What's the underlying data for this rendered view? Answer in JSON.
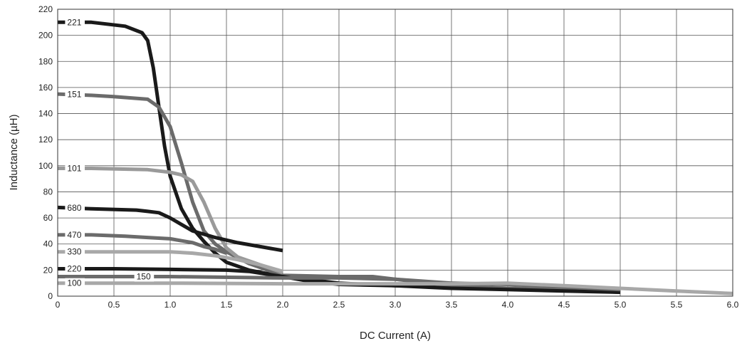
{
  "chart_data": {
    "type": "line",
    "xlabel": "DC Current (A)",
    "ylabel": "Inductance (µH)",
    "xlim": [
      0,
      6.0
    ],
    "ylim": [
      0,
      220
    ],
    "x_ticks": [
      "0",
      "0.5",
      "1.0",
      "1.5",
      "2.0",
      "2.5",
      "3.0",
      "3.5",
      "4.0",
      "4.5",
      "5.0",
      "5.5",
      "6.0"
    ],
    "y_ticks": [
      "0",
      "20",
      "40",
      "60",
      "80",
      "100",
      "120",
      "140",
      "160",
      "180",
      "200",
      "220"
    ],
    "grid": true,
    "series": [
      {
        "name": "221",
        "color": "#1a1a1a",
        "points": [
          [
            0,
            210
          ],
          [
            0.3,
            210
          ],
          [
            0.6,
            207
          ],
          [
            0.75,
            202
          ],
          [
            0.8,
            196
          ],
          [
            0.85,
            175
          ],
          [
            0.9,
            145
          ],
          [
            0.95,
            115
          ],
          [
            1.0,
            92
          ],
          [
            1.1,
            67
          ],
          [
            1.2,
            52
          ],
          [
            1.3,
            42
          ],
          [
            1.4,
            33
          ],
          [
            1.5,
            26
          ],
          [
            1.7,
            20
          ],
          [
            2.0,
            15
          ],
          [
            2.5,
            10
          ],
          [
            3.0,
            8
          ],
          [
            3.5,
            7
          ],
          [
            4.0,
            6
          ],
          [
            4.5,
            5
          ],
          [
            5.0,
            3
          ]
        ]
      },
      {
        "name": "151",
        "color": "#6b6b6b",
        "points": [
          [
            0,
            155
          ],
          [
            0.3,
            154
          ],
          [
            0.5,
            153
          ],
          [
            0.8,
            151
          ],
          [
            0.9,
            145
          ],
          [
            1.0,
            130
          ],
          [
            1.1,
            102
          ],
          [
            1.2,
            72
          ],
          [
            1.3,
            50
          ],
          [
            1.4,
            40
          ],
          [
            1.5,
            34
          ],
          [
            1.7,
            25
          ],
          [
            2.0,
            16
          ],
          [
            2.5,
            15
          ],
          [
            2.8,
            15
          ],
          [
            3.0,
            13
          ],
          [
            3.5,
            8
          ],
          [
            4.0,
            6
          ],
          [
            4.5,
            5
          ],
          [
            5.0,
            4
          ]
        ]
      },
      {
        "name": "101",
        "color": "#9a9a9a",
        "points": [
          [
            0,
            98
          ],
          [
            0.3,
            98
          ],
          [
            0.8,
            97
          ],
          [
            1.0,
            95
          ],
          [
            1.1,
            93
          ],
          [
            1.2,
            88
          ],
          [
            1.3,
            72
          ],
          [
            1.4,
            52
          ],
          [
            1.5,
            37
          ],
          [
            1.6,
            30
          ],
          [
            1.8,
            24
          ],
          [
            2.0,
            18
          ]
        ]
      },
      {
        "name": "680",
        "color": "#1a1a1a",
        "points": [
          [
            0,
            68
          ],
          [
            0.3,
            67
          ],
          [
            0.7,
            66
          ],
          [
            0.8,
            65
          ],
          [
            0.9,
            64
          ],
          [
            1.0,
            60
          ],
          [
            1.1,
            55
          ],
          [
            1.2,
            50
          ],
          [
            1.4,
            45
          ],
          [
            1.6,
            41
          ],
          [
            1.8,
            38
          ],
          [
            2.0,
            35
          ]
        ]
      },
      {
        "name": "470",
        "color": "#6b6b6b",
        "points": [
          [
            0,
            47
          ],
          [
            0.3,
            47
          ],
          [
            0.6,
            46
          ],
          [
            0.8,
            45
          ],
          [
            1.0,
            44
          ],
          [
            1.2,
            41
          ],
          [
            1.3,
            38
          ],
          [
            1.4,
            36
          ],
          [
            1.5,
            33
          ]
        ]
      },
      {
        "name": "330",
        "color": "#a8a8a8",
        "points": [
          [
            0,
            34
          ],
          [
            0.3,
            34
          ],
          [
            0.6,
            34
          ],
          [
            0.8,
            34
          ],
          [
            1.0,
            34
          ],
          [
            1.2,
            33
          ],
          [
            1.4,
            31
          ],
          [
            1.6,
            28
          ],
          [
            1.8,
            24
          ],
          [
            2.0,
            19
          ]
        ]
      },
      {
        "name": "220",
        "color": "#1a1a1a",
        "points": [
          [
            0,
            21
          ],
          [
            0.5,
            21
          ],
          [
            1.0,
            20.5
          ],
          [
            1.5,
            20
          ],
          [
            1.7,
            19
          ],
          [
            2.0,
            15
          ],
          [
            2.2,
            12
          ],
          [
            2.5,
            9
          ],
          [
            3.0,
            8
          ],
          [
            3.5,
            6
          ],
          [
            4.0,
            5
          ],
          [
            4.5,
            4
          ],
          [
            5.0,
            3
          ]
        ]
      },
      {
        "name": "150",
        "color": "#6b6b6b",
        "points": [
          [
            0,
            15
          ],
          [
            1.0,
            15
          ],
          [
            2.0,
            14
          ],
          [
            2.5,
            14
          ],
          [
            3.0,
            13
          ],
          [
            3.5,
            10
          ],
          [
            4.0,
            9
          ],
          [
            4.5,
            7
          ],
          [
            5.0,
            5
          ]
        ]
      },
      {
        "name": "100",
        "color": "#a8a8a8",
        "points": [
          [
            0,
            10
          ],
          [
            0.5,
            10
          ],
          [
            1.0,
            10
          ],
          [
            2.0,
            9.5
          ],
          [
            3.0,
            9.5
          ],
          [
            3.5,
            9.5
          ],
          [
            4.0,
            10
          ],
          [
            4.5,
            8
          ],
          [
            5.0,
            6
          ],
          [
            5.5,
            4
          ],
          [
            6.0,
            2
          ]
        ]
      }
    ]
  }
}
